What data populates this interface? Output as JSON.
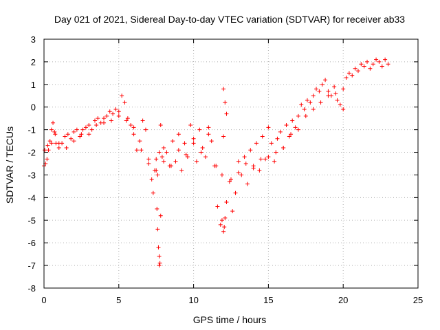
{
  "chart_data": {
    "type": "scatter",
    "title": "Day 021 of 2021, Sidereal Day-to-day VTEC variation (SDTVAR) for receiver ab33",
    "xlabel": "GPS time / hours",
    "ylabel": "SDTVAR / TECUs",
    "xlim": [
      0,
      25
    ],
    "ylim": [
      -8,
      3
    ],
    "xticks": [
      0,
      5,
      10,
      15,
      20,
      25
    ],
    "yticks": [
      -8,
      -7,
      -6,
      -5,
      -4,
      -3,
      -2,
      -1,
      0,
      1,
      2,
      3
    ],
    "xtick_labels": [
      "0",
      "5",
      "10",
      "15",
      "20",
      "25"
    ],
    "ytick_labels": [
      "-8",
      "-7",
      "-6",
      "-5",
      "-4",
      "-3",
      "-2",
      "-1",
      "0",
      "1",
      "2",
      "3"
    ],
    "grid": true,
    "marker": "+",
    "color": "#ff0000",
    "series": [
      {
        "name": "SDTVAR",
        "x": [
          0.0,
          0.1,
          0.2,
          0.3,
          0.4,
          0.5,
          0.6,
          0.7,
          0.8,
          1.0,
          1.2,
          1.4,
          1.6,
          1.8,
          2.0,
          2.2,
          2.4,
          2.6,
          2.8,
          3.0,
          3.2,
          3.4,
          3.6,
          3.8,
          4.0,
          4.2,
          4.4,
          4.6,
          4.8,
          5.0,
          5.2,
          5.4,
          5.6,
          5.8,
          6.0,
          6.2,
          6.4,
          6.6,
          6.8,
          7.0,
          7.2,
          7.3,
          7.4,
          7.5,
          7.6,
          7.7,
          7.8,
          7.9,
          8.0,
          8.2,
          8.4,
          8.6,
          8.8,
          9.0,
          9.2,
          9.4,
          9.6,
          9.8,
          10.0,
          10.2,
          10.4,
          10.6,
          10.8,
          11.0,
          11.2,
          11.4,
          11.6,
          11.8,
          11.9,
          12.0,
          12.1,
          12.2,
          12.4,
          12.6,
          12.8,
          13.0,
          13.2,
          13.4,
          13.6,
          13.8,
          14.0,
          14.2,
          14.4,
          14.6,
          14.8,
          15.0,
          15.2,
          15.4,
          15.6,
          15.8,
          16.0,
          16.2,
          16.4,
          16.6,
          16.8,
          17.0,
          17.2,
          17.4,
          17.6,
          17.8,
          18.0,
          18.2,
          18.4,
          18.6,
          18.8,
          19.0,
          19.2,
          19.4,
          19.6,
          19.8,
          20.0,
          20.2,
          20.4,
          20.6,
          20.8,
          21.0,
          21.2,
          21.4,
          21.6,
          21.8,
          22.0,
          22.2,
          22.4,
          22.6,
          22.8,
          23.0,
          0.05,
          0.25,
          0.5,
          0.75,
          1.0,
          1.5,
          2.0,
          2.5,
          3.0,
          3.5,
          4.0,
          4.5,
          5.0,
          5.5,
          6.0,
          6.5,
          7.0,
          7.5,
          8.0,
          8.5,
          9.0,
          9.5,
          10.0,
          10.5,
          11.0,
          11.5,
          12.0,
          12.5,
          13.0,
          13.5,
          14.0,
          14.5,
          15.0,
          15.5,
          16.0,
          16.5,
          17.0,
          17.5,
          18.0,
          18.5,
          19.0,
          19.5,
          20.0,
          7.55,
          7.6,
          7.65,
          7.7,
          7.7,
          7.75,
          7.8,
          12.0,
          12.1,
          12.2,
          11.9,
          12.05
        ],
        "y": [
          -2.6,
          -2.5,
          -2.3,
          -1.9,
          -1.5,
          -1.0,
          -0.7,
          -1.1,
          -1.6,
          -1.8,
          -1.6,
          -1.3,
          -1.2,
          -1.4,
          -1.1,
          -1.0,
          -1.3,
          -1.0,
          -0.9,
          -0.8,
          -1.0,
          -0.6,
          -0.5,
          -0.7,
          -0.5,
          -0.4,
          -0.2,
          -0.3,
          -0.1,
          -0.2,
          0.5,
          0.2,
          -0.5,
          -0.8,
          -1.2,
          -1.9,
          -1.5,
          -0.6,
          -1.0,
          -2.5,
          -3.2,
          -3.8,
          -2.8,
          -2.3,
          -3.0,
          -2.0,
          -0.8,
          -2.2,
          -1.8,
          -2.0,
          -2.6,
          -1.5,
          -2.4,
          -1.2,
          -2.8,
          -1.6,
          -2.2,
          -0.8,
          -1.6,
          -2.4,
          -1.0,
          -1.8,
          -2.2,
          -0.9,
          -1.5,
          -2.6,
          -4.4,
          -5.2,
          -3.0,
          0.8,
          0.2,
          -0.3,
          -3.3,
          -4.6,
          -3.8,
          -2.4,
          -3.0,
          -2.2,
          -3.4,
          -1.9,
          -2.6,
          -1.6,
          -2.8,
          -1.3,
          -2.3,
          -0.9,
          -1.6,
          -2.4,
          -1.4,
          -1.1,
          -1.8,
          -0.8,
          -1.3,
          -0.6,
          -0.9,
          -0.4,
          0.1,
          -0.1,
          0.3,
          0.2,
          0.5,
          0.8,
          0.7,
          1.0,
          1.2,
          0.7,
          0.5,
          0.9,
          0.3,
          0.1,
          -0.1,
          1.3,
          1.5,
          1.4,
          1.7,
          1.6,
          1.9,
          1.8,
          2.0,
          1.7,
          1.9,
          2.1,
          2.0,
          1.8,
          2.1,
          1.9,
          -1.9,
          -1.7,
          -1.6,
          -1.2,
          -1.6,
          -1.8,
          -1.5,
          -1.2,
          -1.2,
          -0.8,
          -0.7,
          -0.6,
          -0.4,
          -0.6,
          -0.9,
          -1.9,
          -2.3,
          -2.8,
          -2.4,
          -2.6,
          -1.9,
          -2.1,
          -1.4,
          -2.0,
          -1.2,
          -2.6,
          -1.3,
          -3.2,
          -2.9,
          -2.5,
          -2.7,
          -2.3,
          -2.2,
          -2.0,
          -1.8,
          -1.2,
          -1.0,
          -0.4,
          -0.1,
          0.2,
          0.5,
          0.6,
          0.8,
          -4.5,
          -5.4,
          -6.2,
          -6.6,
          -7.0,
          -6.9,
          -4.8,
          -5.5,
          -4.9,
          -4.2,
          -5.0,
          -5.3
        ]
      }
    ]
  }
}
